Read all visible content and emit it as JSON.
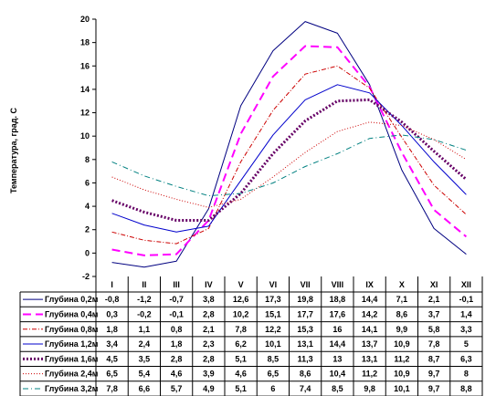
{
  "chart_data": {
    "type": "line",
    "ylabel": "Температура, град. С",
    "ylim": [
      -2,
      20
    ],
    "ytick_step": 2,
    "yticks": [
      "-2",
      "0",
      "2",
      "4",
      "6",
      "8",
      "10",
      "12",
      "14",
      "16",
      "18",
      "20"
    ],
    "categories": [
      "I",
      "II",
      "III",
      "IV",
      "V",
      "VI",
      "VII",
      "VIII",
      "IX",
      "X",
      "XI",
      "XII"
    ],
    "grid": false,
    "legend": "table-below",
    "series": [
      {
        "name": "Глубина 0,2м",
        "values": [
          -0.8,
          -1.2,
          -0.7,
          3.8,
          12.6,
          17.3,
          19.8,
          18.8,
          14.4,
          7.1,
          2.1,
          -0.1
        ],
        "labels": [
          "-0,8",
          "-1,2",
          "-0,7",
          "3,8",
          "12,6",
          "17,3",
          "19,8",
          "18,8",
          "14,4",
          "7,1",
          "2,1",
          "-0,1"
        ],
        "color": "#000080",
        "dash": "",
        "width": 1
      },
      {
        "name": "Глубина 0,4м",
        "values": [
          0.3,
          -0.2,
          -0.1,
          2.8,
          10.2,
          15.1,
          17.7,
          17.6,
          14.2,
          8.6,
          3.7,
          1.4
        ],
        "labels": [
          "0,3",
          "-0,2",
          "-0,1",
          "2,8",
          "10,2",
          "15,1",
          "17,7",
          "17,6",
          "14,2",
          "8,6",
          "3,7",
          "1,4"
        ],
        "color": "#ff00ff",
        "dash": "9,5",
        "width": 2
      },
      {
        "name": "Глубина 0,8м",
        "values": [
          1.8,
          1.1,
          0.8,
          2.1,
          7.8,
          12.2,
          15.3,
          16,
          14.1,
          9.9,
          5.8,
          3.3
        ],
        "labels": [
          "1,8",
          "1,1",
          "0,8",
          "2,1",
          "7,8",
          "12,2",
          "15,3",
          "16",
          "14,1",
          "9,9",
          "5,8",
          "3,3"
        ],
        "color": "#cc0000",
        "dash": "5,2,1,2",
        "width": 1
      },
      {
        "name": "Глубина 1,2м",
        "values": [
          3.4,
          2.4,
          1.8,
          2.3,
          6.2,
          10.1,
          13.1,
          14.4,
          13.7,
          10.9,
          7.8,
          5
        ],
        "labels": [
          "3,4",
          "2,4",
          "1,8",
          "2,3",
          "6,2",
          "10,1",
          "13,1",
          "14,4",
          "13,7",
          "10,9",
          "7,8",
          "5"
        ],
        "color": "#0000cc",
        "dash": "",
        "width": 1
      },
      {
        "name": "Глубина 1,6м",
        "values": [
          4.5,
          3.5,
          2.8,
          2.8,
          5.1,
          8.5,
          11.3,
          13,
          13.1,
          11.2,
          8.7,
          6.3
        ],
        "labels": [
          "4,5",
          "3,5",
          "2,8",
          "2,8",
          "5,1",
          "8,5",
          "11,3",
          "13",
          "13,1",
          "11,2",
          "8,7",
          "6,3"
        ],
        "color": "#660066",
        "dash": "2,2",
        "width": 3
      },
      {
        "name": "Глубина 2,4м",
        "values": [
          6.5,
          5.4,
          4.6,
          3.9,
          4.6,
          6.5,
          8.6,
          10.4,
          11.2,
          10.9,
          9.7,
          8
        ],
        "labels": [
          "6,5",
          "5,4",
          "4,6",
          "3,9",
          "4,6",
          "6,5",
          "8,6",
          "10,4",
          "11,2",
          "10,9",
          "9,7",
          "8"
        ],
        "color": "#cc0000",
        "dash": "1,2",
        "width": 1
      },
      {
        "name": "Глубина 3,2м",
        "values": [
          7.8,
          6.6,
          5.7,
          4.9,
          5.1,
          6,
          7.4,
          8.5,
          9.8,
          10.1,
          9.7,
          8.8
        ],
        "labels": [
          "7,8",
          "6,6",
          "5,7",
          "4,9",
          "5,1",
          "6",
          "7,4",
          "8,5",
          "9,8",
          "10,1",
          "9,7",
          "8,8"
        ],
        "color": "#008080",
        "dash": "6,3,1,3",
        "width": 1
      }
    ]
  }
}
